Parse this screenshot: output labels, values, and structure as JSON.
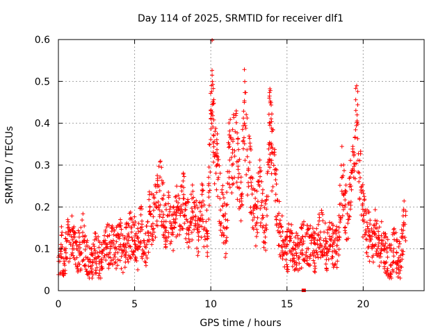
{
  "chart_data": {
    "type": "scatter",
    "title": "Day 114 of 2025, SRMTID for receiver dlf1",
    "xlabel": "GPS time / hours",
    "ylabel": "SRMTID / TECUs",
    "xlim": [
      0,
      24
    ],
    "ylim": [
      0,
      0.6
    ],
    "xticks": [
      "0",
      "5",
      "10",
      "15",
      "20"
    ],
    "xtick_values": [
      0,
      5,
      10,
      15,
      20
    ],
    "yticks": [
      "0",
      "0.1",
      "0.2",
      "0.3",
      "0.4",
      "0.5",
      "0.6"
    ],
    "ytick_values": [
      0,
      0.1,
      0.2,
      0.3,
      0.4,
      0.5,
      0.6
    ],
    "grid": true,
    "marker": "+",
    "color": "#ff0000",
    "series": [
      {
        "name": "SRMTID",
        "x": [
          0.0,
          0.2,
          0.4,
          0.6,
          0.8,
          1.0,
          1.2,
          1.4,
          1.6,
          1.8,
          2.0,
          2.2,
          2.4,
          2.6,
          2.8,
          3.0,
          3.2,
          3.4,
          3.6,
          3.8,
          4.0,
          4.2,
          4.4,
          4.6,
          4.8,
          5.0,
          5.2,
          5.4,
          5.6,
          5.8,
          6.0,
          6.2,
          6.4,
          6.6,
          6.8,
          7.0,
          7.2,
          7.4,
          7.6,
          7.8,
          8.0,
          8.2,
          8.4,
          8.6,
          8.8,
          9.0,
          9.2,
          9.4,
          9.6,
          9.8,
          10.0,
          10.1,
          10.2,
          10.4,
          10.6,
          10.8,
          11.0,
          11.2,
          11.4,
          11.6,
          11.8,
          12.0,
          12.2,
          12.4,
          12.6,
          12.8,
          13.0,
          13.2,
          13.4,
          13.6,
          13.8,
          13.9,
          14.0,
          14.2,
          14.4,
          14.6,
          14.8,
          15.0,
          15.2,
          15.4,
          15.6,
          15.8,
          16.0,
          16.2,
          16.4,
          16.6,
          16.8,
          17.0,
          17.2,
          17.4,
          17.6,
          17.8,
          18.0,
          18.2,
          18.4,
          18.6,
          18.8,
          19.0,
          19.2,
          19.4,
          19.6,
          19.8,
          20.0,
          20.2,
          20.4,
          20.6,
          20.8,
          21.0,
          21.2,
          21.4,
          21.6,
          21.8,
          22.0,
          22.2,
          22.4,
          22.6,
          22.8
        ],
        "y": [
          0.08,
          0.1,
          0.07,
          0.12,
          0.11,
          0.14,
          0.1,
          0.09,
          0.13,
          0.08,
          0.07,
          0.06,
          0.09,
          0.08,
          0.07,
          0.08,
          0.11,
          0.1,
          0.12,
          0.1,
          0.13,
          0.09,
          0.11,
          0.12,
          0.14,
          0.12,
          0.1,
          0.15,
          0.12,
          0.11,
          0.19,
          0.16,
          0.2,
          0.25,
          0.22,
          0.14,
          0.18,
          0.16,
          0.15,
          0.2,
          0.18,
          0.22,
          0.17,
          0.15,
          0.19,
          0.16,
          0.13,
          0.2,
          0.15,
          0.13,
          0.43,
          0.5,
          0.37,
          0.3,
          0.22,
          0.18,
          0.12,
          0.35,
          0.3,
          0.38,
          0.27,
          0.22,
          0.45,
          0.32,
          0.27,
          0.2,
          0.16,
          0.25,
          0.18,
          0.15,
          0.35,
          0.4,
          0.33,
          0.28,
          0.18,
          0.13,
          0.11,
          0.09,
          0.12,
          0.1,
          0.09,
          0.08,
          0.11,
          0.13,
          0.1,
          0.12,
          0.09,
          0.11,
          0.14,
          0.12,
          0.1,
          0.13,
          0.11,
          0.09,
          0.14,
          0.27,
          0.2,
          0.17,
          0.25,
          0.33,
          0.42,
          0.27,
          0.18,
          0.14,
          0.13,
          0.11,
          0.15,
          0.09,
          0.12,
          0.1,
          0.08,
          0.06,
          0.1,
          0.09,
          0.07,
          0.13,
          0.19
        ],
        "outliers": [
          {
            "x": 16.1,
            "y": 0.0
          }
        ]
      }
    ]
  }
}
